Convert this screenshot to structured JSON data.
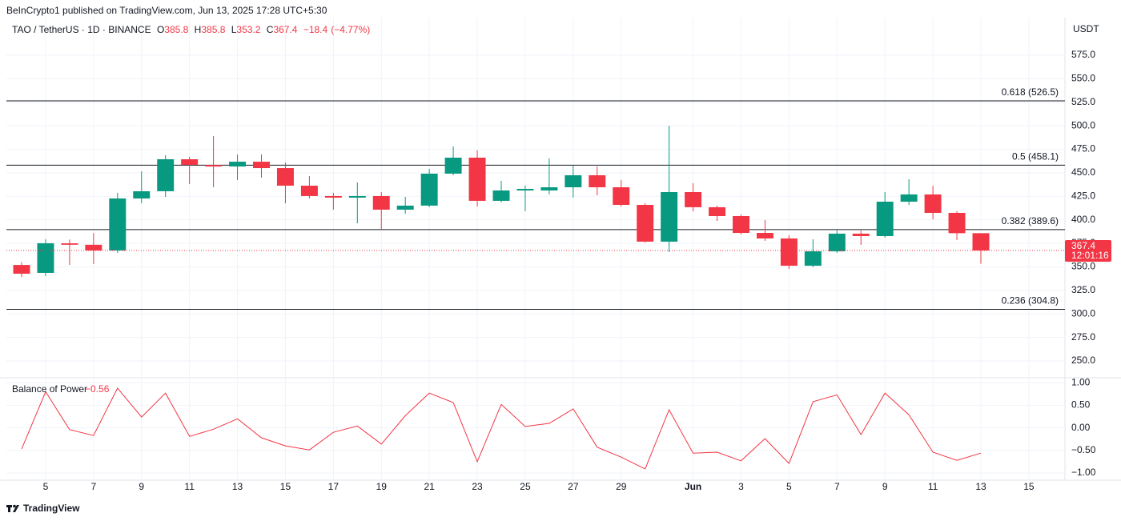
{
  "header": {
    "publisher": "BeInCrypto1 published on TradingView.com, Jun 13, 2025 17:28 UTC+5:30",
    "symbol": "TAO / TetherUS · 1D · BINANCE",
    "o_label": "O",
    "h_label": "H",
    "l_label": "L",
    "c_label": "C",
    "change": "−18.4",
    "change_pct": "(−4.77%)",
    "footer": "TradingView"
  },
  "chart_data": [
    {
      "type": "candlestick",
      "axis_unit": "USDT",
      "categories": [
        null,
        "5",
        null,
        "7",
        null,
        "9",
        null,
        "11",
        null,
        "13",
        null,
        "15",
        null,
        "17",
        null,
        "19",
        null,
        "21",
        null,
        "23",
        null,
        "25",
        null,
        "27",
        null,
        "29",
        null,
        null,
        "Jun",
        null,
        "3",
        null,
        "5",
        null,
        "7",
        null,
        "9",
        null,
        "11",
        null,
        "13",
        null,
        "15"
      ],
      "open": [
        352,
        343.6,
        375,
        373.5,
        367.4,
        422.7,
        430.4,
        464.4,
        458.4,
        456.7,
        461.8,
        455,
        436.3,
        425.3,
        423.6,
        425.3,
        410.8,
        415.1,
        449.1,
        466.1,
        420.2,
        431.2,
        431.2,
        434.6,
        447.4,
        434.6,
        415.9,
        376.8,
        429.5,
        413.4,
        404,
        386.1,
        380.2,
        351.2,
        366.5,
        385.3,
        382.7,
        419.3,
        427,
        407.4,
        385.8,
        null,
        null
      ],
      "high": [
        355,
        379.3,
        379,
        386,
        428.7,
        451.6,
        468.7,
        467,
        489,
        469.5,
        469.5,
        461,
        446.5,
        428.7,
        439.7,
        429.5,
        424.4,
        454.2,
        478,
        473.8,
        441.4,
        436.3,
        465.2,
        457.6,
        456.7,
        442.3,
        417.6,
        500.1,
        438.9,
        415,
        405.7,
        399.7,
        383.6,
        379.3,
        388.7,
        388.7,
        429.5,
        443.1,
        436.3,
        409.1,
        385.8,
        null,
        null
      ],
      "low": [
        339.3,
        340.2,
        352,
        353,
        364.9,
        417.6,
        424.4,
        438,
        434.6,
        442.3,
        444.8,
        417.6,
        422.7,
        410.8,
        396.3,
        389.5,
        406.5,
        413.4,
        447.4,
        414.2,
        418.5,
        409.1,
        427,
        423.6,
        426.1,
        414.2,
        375.9,
        365.7,
        409.1,
        398.9,
        384.4,
        377.6,
        347.8,
        349.5,
        364.9,
        373.4,
        381,
        415.9,
        400.6,
        378.5,
        353.2,
        null,
        null
      ],
      "close": [
        342.7,
        375.1,
        373.5,
        367.4,
        422.7,
        430.4,
        464.4,
        458.4,
        456.7,
        461.8,
        455,
        436.3,
        425.3,
        423.6,
        425.3,
        410.8,
        415.1,
        449.1,
        466.1,
        420.2,
        431.2,
        432.9,
        434.6,
        447.4,
        434.6,
        415.9,
        376.8,
        429.5,
        413.4,
        404,
        386.1,
        380.2,
        351.2,
        366.5,
        385.3,
        382.7,
        419.3,
        427,
        407.4,
        385.8,
        367.4,
        null,
        null
      ],
      "up_color": "#089981",
      "down_color": "#f23645",
      "countdown": "12:01:16",
      "ylim": [
        232.1,
        615
      ],
      "yticks": [
        {
          "value": 250,
          "label": "250.0"
        },
        {
          "value": 275,
          "label": "275.0"
        },
        {
          "value": 300,
          "label": "300.0"
        },
        {
          "value": 325,
          "label": "325.0"
        },
        {
          "value": 350,
          "label": "350.0"
        },
        {
          "value": 375,
          "label": "375.0"
        },
        {
          "value": 400,
          "label": "400.0"
        },
        {
          "value": 425,
          "label": "425.0"
        },
        {
          "value": 450,
          "label": "450.0"
        },
        {
          "value": 475,
          "label": "475.0"
        },
        {
          "value": 500,
          "label": "500.0"
        },
        {
          "value": 525,
          "label": "525.0"
        },
        {
          "value": 550,
          "label": "550.0"
        },
        {
          "value": 575,
          "label": "575.0"
        }
      ],
      "levels": [
        {
          "value": 526.5,
          "label": "0.618 (526.5)"
        },
        {
          "value": 458.1,
          "label": "0.5 (458.1)"
        },
        {
          "value": 389.6,
          "label": "0.382 (389.6)"
        },
        {
          "value": 304.8,
          "label": "0.236 (304.8)"
        }
      ],
      "grid": true
    },
    {
      "type": "line",
      "categories": [
        null,
        "5",
        null,
        "7",
        null,
        "9",
        null,
        "11",
        null,
        "13",
        null,
        "15",
        null,
        "17",
        null,
        "19",
        null,
        "21",
        null,
        "23",
        null,
        "25",
        null,
        "27",
        null,
        "29",
        null,
        null,
        "Jun",
        null,
        "3",
        null,
        "5",
        null,
        "7",
        null,
        "9",
        null,
        "11",
        null,
        "13",
        null,
        "15"
      ],
      "series": [
        {
          "name": "Balance of Power",
          "color": "#f23645",
          "values": [
            -0.47,
            0.8,
            -0.04,
            -0.17,
            0.88,
            0.24,
            0.77,
            -0.19,
            -0.03,
            0.2,
            -0.22,
            -0.4,
            -0.49,
            -0.1,
            0.04,
            -0.36,
            0.27,
            0.77,
            0.56,
            -0.75,
            0.52,
            0.03,
            0.1,
            0.42,
            -0.43,
            -0.65,
            -0.91,
            0.4,
            -0.56,
            -0.54,
            -0.73,
            -0.24,
            -0.79,
            0.58,
            0.73,
            -0.15,
            0.77,
            0.29,
            -0.54,
            -0.72,
            -0.56,
            null,
            null
          ],
          "value_labels": [
            null,
            null,
            null,
            null,
            null,
            null,
            null,
            null,
            null,
            null,
            null,
            null,
            null,
            null,
            null,
            null,
            null,
            null,
            null,
            null,
            null,
            null,
            null,
            null,
            null,
            null,
            null,
            null,
            null,
            null,
            null,
            null,
            null,
            null,
            null,
            null,
            null,
            null,
            null,
            null,
            "−0.56",
            null,
            null
          ]
        }
      ],
      "ylim": [
        -1.16,
        1.11
      ],
      "yticks": [
        {
          "value": 1,
          "label": "1.00"
        },
        {
          "value": 0.5,
          "label": "0.50"
        },
        {
          "value": 0,
          "label": "0.00"
        },
        {
          "value": -0.5,
          "label": "−0.50"
        },
        {
          "value": -1,
          "label": "−1.00"
        }
      ],
      "grid": true
    }
  ]
}
